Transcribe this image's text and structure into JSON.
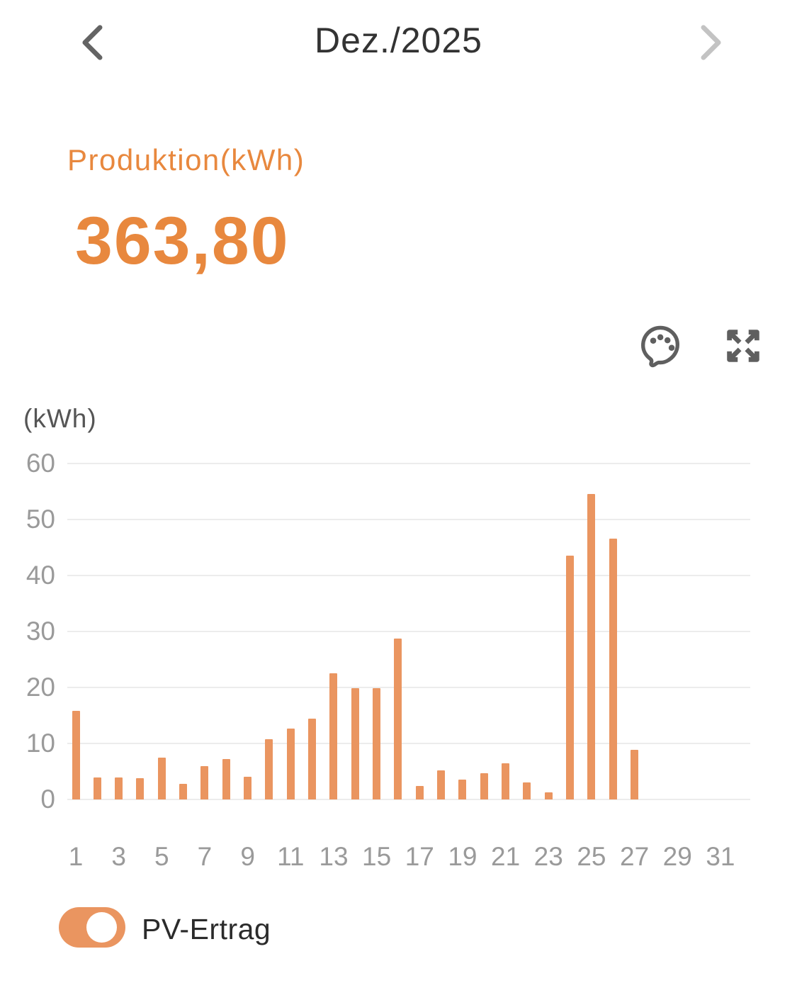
{
  "header": {
    "title": "Dez./2025",
    "prev_icon": "chevron-left-icon",
    "next_icon": "chevron-right-icon"
  },
  "summary": {
    "label": "Produktion(kWh)",
    "value": "363,80"
  },
  "toolbar": {
    "palette_icon": "palette-icon",
    "expand_icon": "expand-arrows-icon"
  },
  "chart_data": {
    "type": "bar",
    "title": "",
    "unit_label": "(kWh)",
    "ylabel": "(kWh)",
    "xlabel": "",
    "ylim": [
      0,
      60
    ],
    "yticks": [
      0,
      10,
      20,
      30,
      40,
      50,
      60
    ],
    "xticks": [
      "1",
      "3",
      "5",
      "7",
      "9",
      "11",
      "13",
      "15",
      "17",
      "19",
      "21",
      "23",
      "25",
      "27",
      "29",
      "31"
    ],
    "categories": [
      "1",
      "2",
      "3",
      "4",
      "5",
      "6",
      "7",
      "8",
      "9",
      "10",
      "11",
      "12",
      "13",
      "14",
      "15",
      "16",
      "17",
      "18",
      "19",
      "20",
      "21",
      "22",
      "23",
      "24",
      "25",
      "26",
      "27",
      "28",
      "29",
      "30",
      "31"
    ],
    "series": [
      {
        "name": "PV-Ertrag",
        "color": "#EA9560",
        "values": [
          15.8,
          3.9,
          3.9,
          3.8,
          7.5,
          2.8,
          6.0,
          7.2,
          4.0,
          10.7,
          12.6,
          14.4,
          22.5,
          19.9,
          19.9,
          28.7,
          2.4,
          5.2,
          3.6,
          4.7,
          6.5,
          3.0,
          1.3,
          43.5,
          54.6,
          46.6,
          8.8,
          null,
          null,
          null,
          null
        ]
      }
    ],
    "grid": true,
    "legend_position": "bottom"
  },
  "legend": {
    "label": "PV-Ertrag",
    "toggle_state": "on"
  },
  "colors": {
    "accent_text": "#E8883E",
    "bar": "#EA9560",
    "axis_label": "#9A9A9A",
    "gridline": "#ECECEC",
    "title_text": "#333333",
    "icon_gray": "#5F5F5F",
    "prev_arrow": "#646464",
    "next_arrow": "#C3C3C3"
  }
}
